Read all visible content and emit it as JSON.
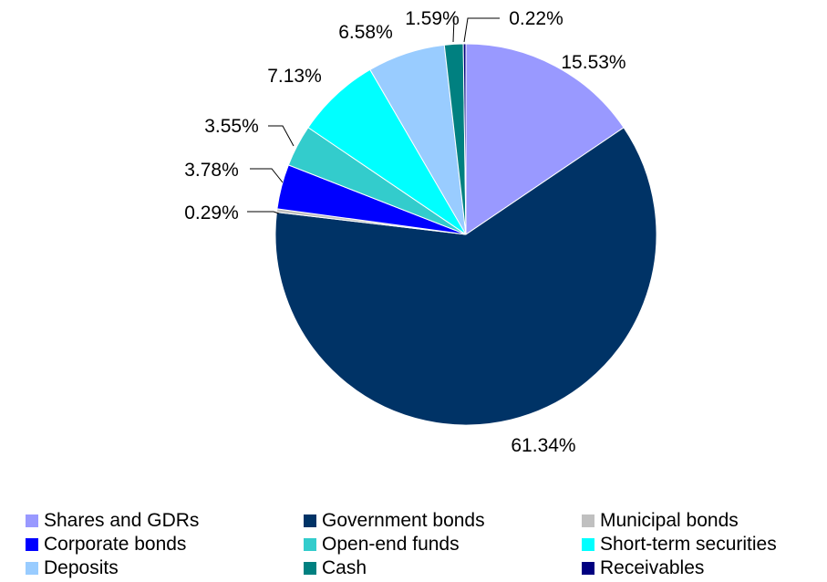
{
  "chart_data": {
    "type": "pie",
    "title": "",
    "start_angle_deg": 0,
    "direction": "clockwise",
    "slices": [
      {
        "name": "Shares and GDRs",
        "value": 15.53,
        "label": "15.53%",
        "color": "#9999ff"
      },
      {
        "name": "Government bonds",
        "value": 61.34,
        "label": "61.34%",
        "color": "#003366"
      },
      {
        "name": "Municipal bonds",
        "value": 0.29,
        "label": "0.29%",
        "color": "#c0c0c0"
      },
      {
        "name": "Corporate bonds",
        "value": 3.78,
        "label": "3.78%",
        "color": "#0000ff"
      },
      {
        "name": "Open-end funds",
        "value": 3.55,
        "label": "3.55%",
        "color": "#33cccc"
      },
      {
        "name": "Short-term securities",
        "value": 7.13,
        "label": "7.13%",
        "color": "#00ffff"
      },
      {
        "name": "Deposits",
        "value": 6.58,
        "label": "6.58%",
        "color": "#99ccff"
      },
      {
        "name": "Cash",
        "value": 1.59,
        "label": "1.59%",
        "color": "#008080"
      },
      {
        "name": "Receivables",
        "value": 0.22,
        "label": "0.22%",
        "color": "#000080"
      }
    ],
    "legend_placement": "bottom"
  }
}
